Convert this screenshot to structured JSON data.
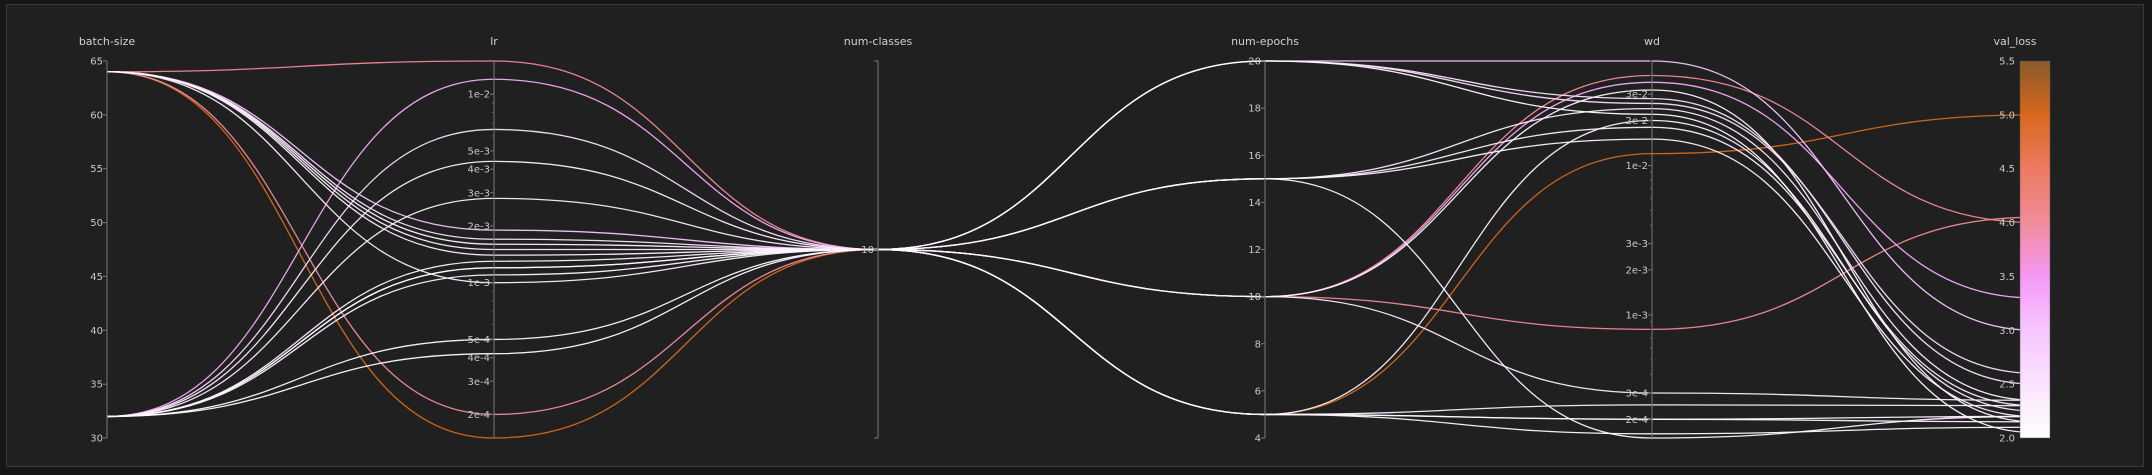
{
  "chart_data": {
    "type": "parallel_coordinates",
    "axes": [
      {
        "name": "batch-size",
        "scale": "linear",
        "range": [
          30,
          65
        ],
        "ticks": [
          {
            "v": 30,
            "label": "30"
          },
          {
            "v": 35,
            "label": "35"
          },
          {
            "v": 40,
            "label": "40"
          },
          {
            "v": 45,
            "label": "45"
          },
          {
            "v": 50,
            "label": "50"
          },
          {
            "v": 55,
            "label": "55"
          },
          {
            "v": 60,
            "label": "60"
          },
          {
            "v": 65,
            "label": "65"
          }
        ]
      },
      {
        "name": "lr",
        "scale": "log",
        "range": [
          0.00015,
          0.015
        ],
        "ticks": [
          {
            "v": 0.0002,
            "label": "2e-4"
          },
          {
            "v": 0.0003,
            "label": "3e-4"
          },
          {
            "v": 0.0004,
            "label": "4e-4"
          },
          {
            "v": 0.0005,
            "label": "5e-4"
          },
          {
            "v": 0.001,
            "label": "1e-3"
          },
          {
            "v": 0.002,
            "label": "2e-3"
          },
          {
            "v": 0.003,
            "label": "3e-3"
          },
          {
            "v": 0.004,
            "label": "4e-3"
          },
          {
            "v": 0.005,
            "label": "5e-3"
          },
          {
            "v": 0.01,
            "label": "1e-2"
          }
        ]
      },
      {
        "name": "num-classes",
        "scale": "categorical",
        "categories": [
          "10"
        ],
        "ticks": [
          {
            "v": "10",
            "label": "10"
          }
        ]
      },
      {
        "name": "num-epochs",
        "scale": "linear",
        "range": [
          4,
          20
        ],
        "ticks": [
          {
            "v": 4,
            "label": "4"
          },
          {
            "v": 6,
            "label": "6"
          },
          {
            "v": 8,
            "label": "8"
          },
          {
            "v": 10,
            "label": "10"
          },
          {
            "v": 12,
            "label": "12"
          },
          {
            "v": 14,
            "label": "14"
          },
          {
            "v": 16,
            "label": "16"
          },
          {
            "v": 18,
            "label": "18"
          },
          {
            "v": 20,
            "label": "20"
          }
        ]
      },
      {
        "name": "wd",
        "scale": "log",
        "range": [
          0.00015,
          0.05
        ],
        "ticks": [
          {
            "v": 0.0002,
            "label": "2e-4"
          },
          {
            "v": 0.0003,
            "label": "3e-4"
          },
          {
            "v": 0.001,
            "label": "1e-3"
          },
          {
            "v": 0.002,
            "label": "2e-3"
          },
          {
            "v": 0.003,
            "label": "3e-3"
          },
          {
            "v": 0.01,
            "label": "1e-2"
          },
          {
            "v": 0.02,
            "label": "2e-2"
          },
          {
            "v": 0.03,
            "label": "3e-2"
          }
        ]
      },
      {
        "name": "val_loss",
        "scale": "linear",
        "range": [
          2.0,
          5.5
        ],
        "colorbar": true,
        "ticks": [
          {
            "v": 2.0,
            "label": "2.0"
          },
          {
            "v": 2.5,
            "label": "2.5"
          },
          {
            "v": 3.0,
            "label": "3.0"
          },
          {
            "v": 3.5,
            "label": "3.5"
          },
          {
            "v": 4.0,
            "label": "4.0"
          },
          {
            "v": 4.5,
            "label": "4.5"
          },
          {
            "v": 5.0,
            "label": "5.0"
          },
          {
            "v": 5.5,
            "label": "5.5"
          }
        ]
      }
    ],
    "colorscale": [
      {
        "v": 2.0,
        "color": "#ffffff"
      },
      {
        "v": 3.0,
        "color": "#f6c6ff"
      },
      {
        "v": 3.5,
        "color": "#f598f5"
      },
      {
        "v": 4.0,
        "color": "#f08c9a"
      },
      {
        "v": 4.5,
        "color": "#ec7a62"
      },
      {
        "v": 5.0,
        "color": "#d8681c"
      },
      {
        "v": 5.5,
        "color": "#8a5a2c"
      }
    ],
    "runs": [
      {
        "batch-size": 64,
        "lr": 0.015,
        "num-classes": "10",
        "num-epochs": 10,
        "wd": 0.0008,
        "val_loss": 4.05
      },
      {
        "batch-size": 64,
        "lr": 0.0002,
        "num-classes": "10",
        "num-epochs": 10,
        "wd": 0.04,
        "val_loss": 4.0
      },
      {
        "batch-size": 64,
        "lr": 0.00015,
        "num-classes": "10",
        "num-epochs": 5,
        "wd": 0.012,
        "val_loss": 5.0
      },
      {
        "batch-size": 64,
        "lr": 0.0019,
        "num-classes": "10",
        "num-epochs": 20,
        "wd": 0.05,
        "val_loss": 3.0
      },
      {
        "batch-size": 64,
        "lr": 0.0017,
        "num-classes": "10",
        "num-epochs": 20,
        "wd": 0.028,
        "val_loss": 2.5
      },
      {
        "batch-size": 64,
        "lr": 0.0015,
        "num-classes": "10",
        "num-epochs": 15,
        "wd": 0.024,
        "val_loss": 2.35
      },
      {
        "batch-size": 64,
        "lr": 0.0014,
        "num-classes": "10",
        "num-epochs": 15,
        "wd": 0.00015,
        "val_loss": 2.2
      },
      {
        "batch-size": 64,
        "lr": 0.0016,
        "num-classes": "10",
        "num-epochs": 10,
        "wd": 0.032,
        "val_loss": 2.15
      },
      {
        "batch-size": 64,
        "lr": 0.001,
        "num-classes": "10",
        "num-epochs": 5,
        "wd": 0.00025,
        "val_loss": 2.3
      },
      {
        "batch-size": 32,
        "lr": 0.012,
        "num-classes": "10",
        "num-epochs": 10,
        "wd": 0.036,
        "val_loss": 3.3
      },
      {
        "batch-size": 32,
        "lr": 0.0065,
        "num-classes": "10",
        "num-epochs": 20,
        "wd": 0.026,
        "val_loss": 2.6
      },
      {
        "batch-size": 32,
        "lr": 0.0044,
        "num-classes": "10",
        "num-epochs": 15,
        "wd": 0.018,
        "val_loss": 2.3
      },
      {
        "batch-size": 32,
        "lr": 0.0028,
        "num-classes": "10",
        "num-epochs": 10,
        "wd": 0.0003,
        "val_loss": 2.35
      },
      {
        "batch-size": 32,
        "lr": 0.0013,
        "num-classes": "10",
        "num-epochs": 5,
        "wd": 0.02,
        "val_loss": 2.25
      },
      {
        "batch-size": 32,
        "lr": 0.0012,
        "num-classes": "10",
        "num-epochs": 5,
        "wd": 0.0002,
        "val_loss": 2.15
      },
      {
        "batch-size": 32,
        "lr": 0.0011,
        "num-classes": "10",
        "num-epochs": 15,
        "wd": 0.015,
        "val_loss": 2.2
      },
      {
        "batch-size": 32,
        "lr": 0.0005,
        "num-classes": "10",
        "num-epochs": 5,
        "wd": 0.00016,
        "val_loss": 2.1
      },
      {
        "batch-size": 32,
        "lr": 0.00042,
        "num-classes": "10",
        "num-epochs": 20,
        "wd": 0.022,
        "val_loss": 2.05
      },
      {
        "batch-size": 32,
        "lr": 0.0012,
        "num-classes": "10",
        "num-epochs": 5,
        "wd": 0.0002,
        "val_loss": 2.2
      }
    ]
  }
}
